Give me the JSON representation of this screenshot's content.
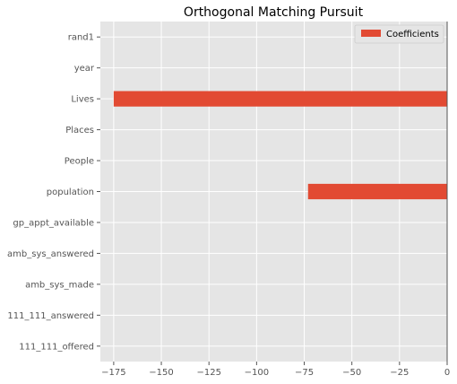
{
  "chart_data": {
    "type": "bar",
    "orientation": "horizontal",
    "title": "Orthogonal Matching Pursuit",
    "categories": [
      "rand1",
      "year",
      "Lives",
      "Places",
      "People",
      "population",
      "gp_appt_available",
      "amb_sys_answered",
      "amb_sys_made",
      "111_111_answered",
      "111_111_offered"
    ],
    "series": [
      {
        "name": "Coefficients",
        "values": [
          0,
          0,
          -175,
          0,
          0,
          -73,
          0,
          0,
          0,
          0,
          0
        ],
        "color": "#E24A33"
      }
    ],
    "xlim": [
      -182,
      0
    ],
    "xticks": [
      -175,
      -150,
      -125,
      -100,
      -75,
      -50,
      -25,
      0
    ],
    "xtick_labels": [
      "−175",
      "−150",
      "−125",
      "−100",
      "−75",
      "−50",
      "−25",
      "0"
    ],
    "xlabel": "",
    "ylabel": "",
    "grid": true,
    "legend_position": "top-right",
    "colors": {
      "plot_background": "#E5E5E5",
      "grid": "#FFFFFF",
      "bar": "#E24A33",
      "tick_text": "#555555"
    }
  }
}
